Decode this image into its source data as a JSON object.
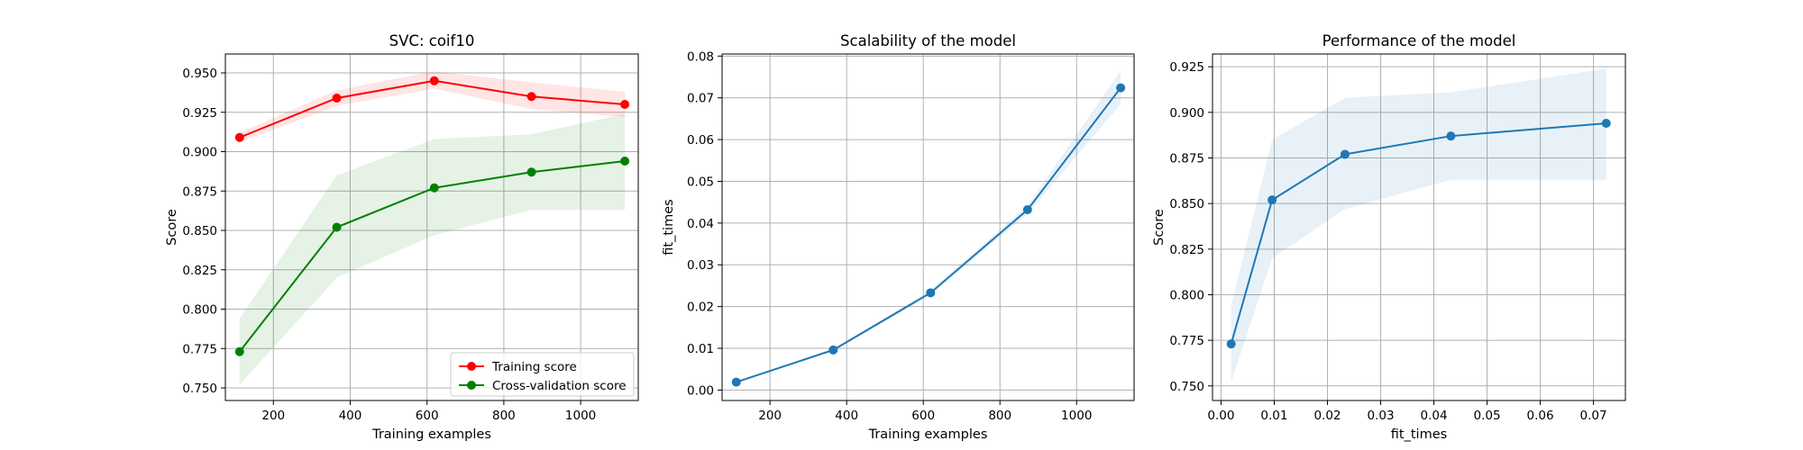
{
  "chart_data": [
    {
      "type": "line",
      "title": "SVC: coif10",
      "xlabel": "Training examples",
      "ylabel": "Score",
      "xlim": [
        75,
        1150
      ],
      "ylim": [
        0.742,
        0.962
      ],
      "xticks": [
        200,
        400,
        600,
        800,
        1000
      ],
      "yticks": [
        0.75,
        0.775,
        0.8,
        0.825,
        0.85,
        0.875,
        0.9,
        0.925,
        0.95
      ],
      "ytick_labels": [
        "0.750",
        "0.775",
        "0.800",
        "0.825",
        "0.850",
        "0.875",
        "0.900",
        "0.925",
        "0.950"
      ],
      "xtick_labels": [
        "200",
        "400",
        "600",
        "800",
        "1000"
      ],
      "grid": true,
      "legend_position": "lower-right",
      "x": [
        112,
        365,
        619,
        872,
        1115
      ],
      "series": [
        {
          "name": "Training score",
          "color": "#ff0000",
          "values": [
            0.909,
            0.934,
            0.945,
            0.935,
            0.93
          ],
          "band_lower": [
            0.906,
            0.929,
            0.94,
            0.927,
            0.922
          ],
          "band_upper": [
            0.912,
            0.939,
            0.951,
            0.944,
            0.938
          ]
        },
        {
          "name": "Cross-validation score",
          "color": "#008000",
          "values": [
            0.773,
            0.852,
            0.877,
            0.887,
            0.894
          ],
          "band_lower": [
            0.752,
            0.82,
            0.847,
            0.863,
            0.863
          ],
          "band_upper": [
            0.794,
            0.885,
            0.908,
            0.911,
            0.924
          ]
        }
      ]
    },
    {
      "type": "line",
      "title": "Scalability of the model",
      "xlabel": "Training examples",
      "ylabel": "fit_times",
      "xlim": [
        75,
        1150
      ],
      "ylim": [
        -0.0025,
        0.0805
      ],
      "xticks": [
        200,
        400,
        600,
        800,
        1000
      ],
      "yticks": [
        0,
        0.01,
        0.02,
        0.03,
        0.04,
        0.05,
        0.06,
        0.07,
        0.08
      ],
      "ytick_labels": [
        "0.00",
        "0.01",
        "0.02",
        "0.03",
        "0.04",
        "0.05",
        "0.06",
        "0.07",
        "0.08"
      ],
      "xtick_labels": [
        "200",
        "400",
        "600",
        "800",
        "1000"
      ],
      "grid": true,
      "x": [
        112,
        365,
        619,
        872,
        1115
      ],
      "series": [
        {
          "name": "fit_times",
          "color": "#1f77b4",
          "values": [
            0.0019,
            0.0096,
            0.0233,
            0.0432,
            0.0724
          ],
          "band_lower": [
            0.0017,
            0.0093,
            0.0227,
            0.0422,
            0.0685
          ],
          "band_upper": [
            0.0021,
            0.0099,
            0.0239,
            0.0442,
            0.0765
          ]
        }
      ]
    },
    {
      "type": "line",
      "title": "Performance of the model",
      "xlabel": "fit_times",
      "ylabel": "Score",
      "xlim": [
        -0.0016,
        0.076
      ],
      "ylim": [
        0.742,
        0.932
      ],
      "xticks": [
        0,
        0.01,
        0.02,
        0.03,
        0.04,
        0.05,
        0.06,
        0.07
      ],
      "xtick_labels": [
        "0.00",
        "0.01",
        "0.02",
        "0.03",
        "0.04",
        "0.05",
        "0.06",
        "0.07"
      ],
      "yticks": [
        0.75,
        0.775,
        0.8,
        0.825,
        0.85,
        0.875,
        0.9,
        0.925
      ],
      "ytick_labels": [
        "0.750",
        "0.775",
        "0.800",
        "0.825",
        "0.850",
        "0.875",
        "0.900",
        "0.925"
      ],
      "grid": true,
      "x": [
        0.0019,
        0.0096,
        0.0233,
        0.0432,
        0.0724
      ],
      "series": [
        {
          "name": "Score",
          "color": "#1f77b4",
          "values": [
            0.773,
            0.852,
            0.877,
            0.887,
            0.894
          ],
          "band_lower": [
            0.752,
            0.82,
            0.847,
            0.863,
            0.863
          ],
          "band_upper": [
            0.794,
            0.885,
            0.908,
            0.911,
            0.924
          ]
        }
      ]
    }
  ]
}
